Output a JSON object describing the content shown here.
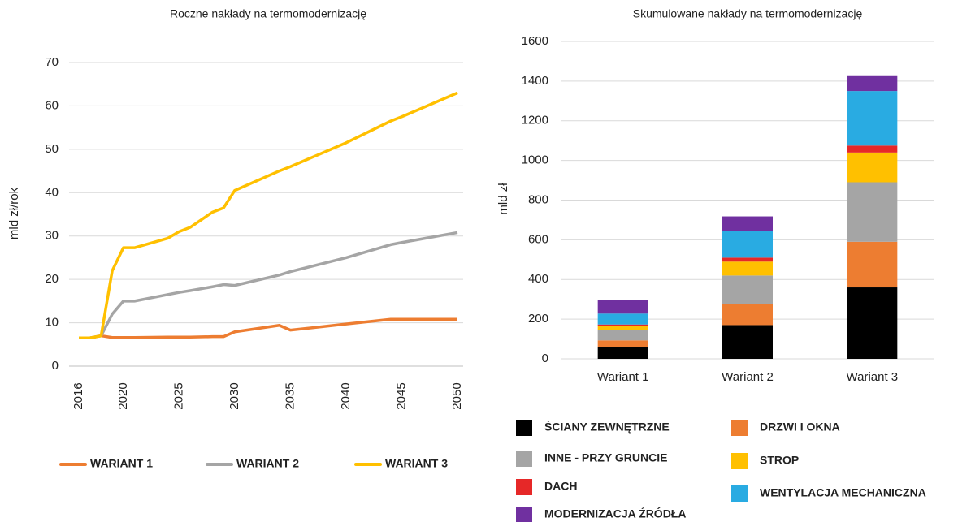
{
  "chart_data": [
    {
      "type": "line",
      "title": "Roczne nakłady na termomodernizację",
      "y_label": "mld  zł/rok",
      "x": [
        2016,
        2017,
        2018,
        2019,
        2020,
        2021,
        2024,
        2025,
        2026,
        2028,
        2029,
        2030,
        2034,
        2035,
        2040,
        2044,
        2045,
        2050
      ],
      "xlim": [
        2016,
        2050
      ],
      "xticks": [
        2016,
        2020,
        2025,
        2030,
        2035,
        2040,
        2045,
        2050
      ],
      "ylim": [
        0,
        70
      ],
      "yticks": [
        0,
        10,
        20,
        30,
        40,
        50,
        60,
        70
      ],
      "grid": true,
      "series": [
        {
          "name": "WARIANT 1",
          "color": "#ED7D31",
          "values": [
            6.5,
            6.5,
            7,
            6.6,
            6.6,
            6.6,
            6.7,
            6.7,
            6.7,
            6.8,
            6.8,
            7.9,
            9.4,
            8.3,
            9.7,
            10.8,
            10.8,
            10.8
          ]
        },
        {
          "name": "WARIANT 2",
          "color": "#A5A5A5",
          "values": [
            6.5,
            6.5,
            7,
            12,
            15,
            15,
            16.5,
            17,
            17.4,
            18.3,
            18.8,
            18.6,
            21,
            21.8,
            25,
            28,
            28.5,
            30.8
          ]
        },
        {
          "name": "WARIANT 3",
          "color": "#FFC000",
          "values": [
            6.5,
            6.5,
            7,
            22,
            27.3,
            27.3,
            29.5,
            31,
            32,
            35.5,
            36.5,
            40.5,
            45,
            46,
            51.5,
            56.5,
            57.5,
            63
          ]
        }
      ]
    },
    {
      "type": "stacked_bar",
      "title": "Skumulowane nakłady na termomodernizację",
      "y_label": "mld zł",
      "categories": [
        "Wariant 1",
        "Wariant 2",
        "Wariant 3"
      ],
      "ylim": [
        0,
        1600
      ],
      "yticks": [
        0,
        200,
        400,
        600,
        800,
        1000,
        1200,
        1400,
        1600
      ],
      "grid": true,
      "series": [
        {
          "name": "ŚCIANY ZEWNĘTRZNE",
          "color": "#000000",
          "values": [
            58,
            170,
            360
          ]
        },
        {
          "name": "DRZWI I OKNA",
          "color": "#ED7D31",
          "values": [
            35,
            108,
            230
          ]
        },
        {
          "name": "INNE - PRZY GRUNCIE",
          "color": "#A5A5A5",
          "values": [
            52,
            142,
            300
          ]
        },
        {
          "name": "STROP",
          "color": "#FFC000",
          "values": [
            20,
            70,
            150
          ]
        },
        {
          "name": "DACH",
          "color": "#E62828",
          "values": [
            8,
            20,
            35
          ]
        },
        {
          "name": "WENTYLACJA MECHANICZNA",
          "color": "#29ABE2",
          "values": [
            55,
            133,
            275
          ]
        },
        {
          "name": "MODERNIZACJA ŹRÓDŁA",
          "color": "#7030A0",
          "values": [
            70,
            75,
            75
          ]
        }
      ]
    }
  ]
}
